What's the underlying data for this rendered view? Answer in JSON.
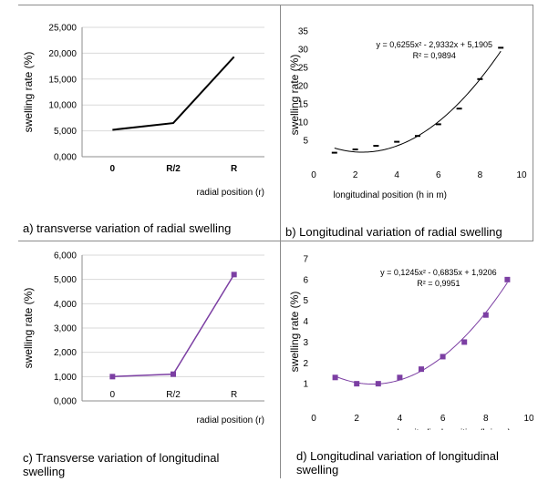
{
  "captions": {
    "a": "a) transverse variation of radial swelling",
    "b": "b) Longitudinal variation of radial swelling",
    "c": "c) Transverse variation of longitudinal\n    swelling",
    "d": "d) Longitudinal variation of longitudinal\n    swelling"
  },
  "chart_data": [
    {
      "id": "a",
      "type": "line",
      "categories": [
        "0",
        "R/2",
        "R"
      ],
      "values": [
        5200,
        6500,
        19300
      ],
      "ylabel": "swelling rate (%)",
      "xlabel": "radial position (r)",
      "ylim": [
        0,
        25000
      ],
      "yticks": [
        "0,000",
        "5,000",
        "10,000",
        "15,000",
        "20,000",
        "25,000"
      ],
      "ytick_values": [
        0,
        5000,
        10000,
        15000,
        20000,
        25000
      ],
      "grid": true,
      "line_color": "#000000",
      "marker": "none"
    },
    {
      "id": "b",
      "type": "scatter",
      "x": [
        1,
        2,
        3,
        4,
        5,
        6,
        7,
        8,
        9
      ],
      "y": [
        1.6,
        2.5,
        3.5,
        4.6,
        6.2,
        9.4,
        13.7,
        21.8,
        30.4
      ],
      "trendline": {
        "type": "polynomial",
        "a": 0.6255,
        "b": -2.9332,
        "c": 5.1905
      },
      "equation": "y = 0,6255x² - 2,9332x + 5,1905",
      "r2": "R² = 0,9894",
      "ylabel": "swelling rate (%)",
      "xlabel": "longitudinal position (h in m)",
      "xlim": [
        0,
        10
      ],
      "ylim": [
        0,
        35
      ],
      "xticks": [
        "0",
        "2",
        "4",
        "6",
        "8",
        "10"
      ],
      "xtick_values": [
        0,
        2,
        4,
        6,
        8,
        10
      ],
      "yticks": [
        "5",
        "10",
        "15",
        "20",
        "25",
        "30",
        "35"
      ],
      "ytick_values": [
        5,
        10,
        15,
        20,
        25,
        30,
        35
      ],
      "grid": false,
      "line_color": "#000000",
      "marker": "dash"
    },
    {
      "id": "c",
      "type": "line",
      "categories": [
        "0",
        "R/2",
        "R"
      ],
      "values": [
        1000,
        1100,
        5200
      ],
      "ylabel": "swelling rate (%)",
      "xlabel": "radial position (r)",
      "ylim": [
        0,
        6000
      ],
      "yticks": [
        "0,000",
        "1,000",
        "2,000",
        "3,000",
        "4,000",
        "5,000",
        "6,000"
      ],
      "ytick_values": [
        0,
        1000,
        2000,
        3000,
        4000,
        5000,
        6000
      ],
      "grid": true,
      "line_color": "#7c3fa3",
      "marker": "square"
    },
    {
      "id": "d",
      "type": "scatter",
      "x": [
        1,
        2,
        3,
        4,
        5,
        6,
        7,
        8,
        9
      ],
      "y": [
        1.3,
        1.0,
        1.0,
        1.3,
        1.7,
        2.3,
        3.0,
        4.3,
        6.0
      ],
      "trendline": {
        "type": "polynomial",
        "a": 0.1245,
        "b": -0.6835,
        "c": 1.9206
      },
      "equation": "y = 0,1245x² - 0,6835x + 1,9206",
      "r2": "R² = 0,9951",
      "ylabel": "swelling rate (%)",
      "xlabel": "longitudinal position (h in m)",
      "xlim": [
        0,
        10
      ],
      "ylim": [
        0,
        7
      ],
      "xticks": [
        "0",
        "2",
        "4",
        "6",
        "8",
        "10"
      ],
      "xtick_values": [
        0,
        2,
        4,
        6,
        8,
        10
      ],
      "yticks": [
        "1",
        "2",
        "3",
        "4",
        "5",
        "6",
        "7"
      ],
      "ytick_values": [
        1,
        2,
        3,
        4,
        5,
        6,
        7
      ],
      "grid": false,
      "line_color": "#7c3fa3",
      "marker": "square"
    }
  ]
}
